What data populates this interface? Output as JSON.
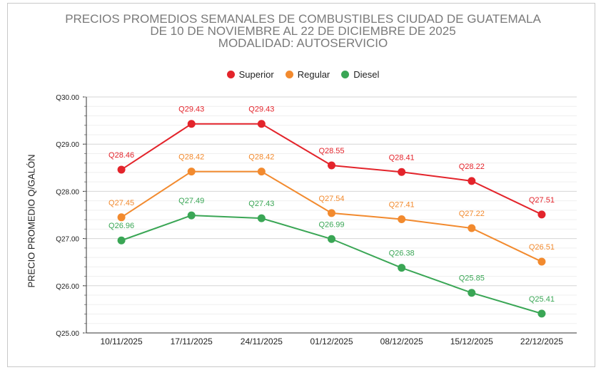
{
  "chart_data": {
    "type": "line",
    "title": [
      "PRECIOS PROMEDIOS SEMANALES DE COMBUSTIBLES CIUDAD DE GUATEMALA",
      "DE 10 DE NOVIEMBRE AL 22 DE DICIEMBRE DE 2025",
      "MODALIDAD: AUTOSERVICIO"
    ],
    "ylabel": "PRECIO PROMEDIO Q/GALÓN",
    "xlabel": "",
    "categories": [
      "10/11/2025",
      "17/11/2025",
      "24/11/2025",
      "01/12/2025",
      "08/12/2025",
      "15/12/2025",
      "22/12/2025"
    ],
    "ylim": [
      25,
      30
    ],
    "yticks": [
      25,
      26,
      27,
      28,
      29,
      30
    ],
    "ytick_labels": [
      "Q25.00",
      "Q26.00",
      "Q27.00",
      "Q28.00",
      "Q29.00",
      "Q30.00"
    ],
    "grid": true,
    "legend_position": "top-center",
    "series": [
      {
        "name": "Superior",
        "color": "#e3242b",
        "values": [
          28.46,
          29.43,
          29.43,
          28.55,
          28.41,
          28.22,
          27.51
        ],
        "labels": [
          "Q28.46",
          "Q29.43",
          "Q29.43",
          "Q28.55",
          "Q28.41",
          "Q28.22",
          "Q27.51"
        ]
      },
      {
        "name": "Regular",
        "color": "#f28a2e",
        "values": [
          27.45,
          28.42,
          28.42,
          27.54,
          27.41,
          27.22,
          26.51
        ],
        "labels": [
          "Q27.45",
          "Q28.42",
          "Q28.42",
          "Q27.54",
          "Q27.41",
          "Q27.22",
          "Q26.51"
        ]
      },
      {
        "name": "Diesel",
        "color": "#3aa655",
        "values": [
          26.96,
          27.49,
          27.43,
          26.99,
          26.38,
          25.85,
          25.41
        ],
        "labels": [
          "Q26.96",
          "Q27.49",
          "Q27.43",
          "Q26.99",
          "Q26.38",
          "Q25.85",
          "Q25.41"
        ]
      }
    ]
  }
}
